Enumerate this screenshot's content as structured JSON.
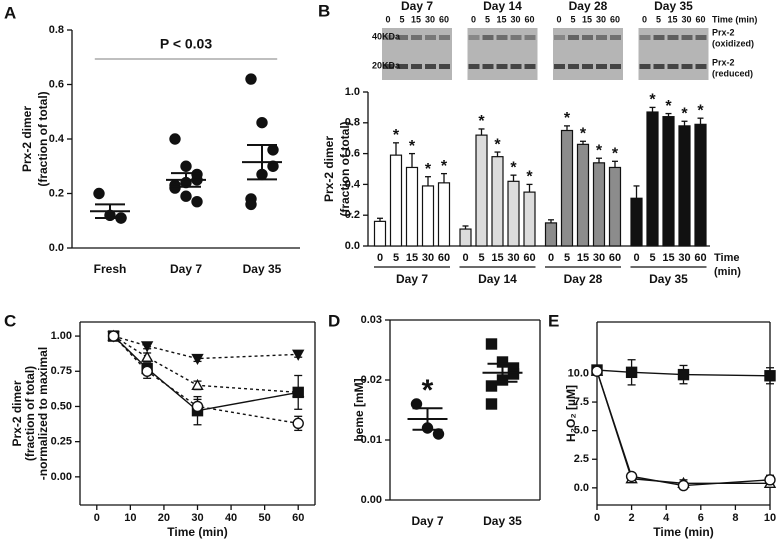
{
  "chart_data": [
    {
      "type": "dot",
      "panel": "A",
      "ylabel": [
        "Prx-2 dimer",
        "(fraction of total)"
      ],
      "annotation": "P < 0.03",
      "categories": [
        "Fresh",
        "Day 7",
        "Day 35"
      ],
      "marker": "circle",
      "points": [
        [
          0.2,
          0.12,
          0.11,
          0.11
        ],
        [
          0.4,
          0.3,
          0.27,
          0.25,
          0.24,
          0.23,
          0.22,
          0.19,
          0.17
        ],
        [
          0.62,
          0.46,
          0.36,
          0.3,
          0.27,
          0.18,
          0.16
        ]
      ],
      "means": [
        0.135,
        0.25,
        0.315
      ],
      "sems": [
        0.025,
        0.025,
        0.063
      ],
      "ylim": [
        0,
        0.8
      ],
      "yticks": [
        {
          "value": 0,
          "label": "0.0"
        },
        0.2,
        0.4,
        0.6,
        0.8
      ]
    },
    {
      "type": "bar",
      "panel": "B",
      "ylabel": [
        "Prx-2 dimer",
        "(fraction of total)"
      ],
      "xlabel": [
        "Time",
        "(min)"
      ],
      "marker": "*",
      "blot": {
        "time_label": "Time (min)",
        "sizes": [
          "40KDa",
          "20KDa"
        ],
        "bands": [
          [
            "Prx-2",
            "(oxidized)"
          ],
          [
            "Prx-2",
            "(reduced)"
          ]
        ]
      },
      "categories": [
        "0",
        "5",
        "15",
        "30",
        "60"
      ],
      "series": [
        {
          "name": "Day 7",
          "color": "#ffffff",
          "values": [
            0.16,
            0.59,
            0.51,
            0.39,
            0.41
          ],
          "errors": [
            0.02,
            0.08,
            0.09,
            0.06,
            0.06
          ],
          "significant": [
            false,
            true,
            true,
            true,
            true
          ]
        },
        {
          "name": "Day 14",
          "color": "#dcdcdc",
          "values": [
            0.11,
            0.72,
            0.58,
            0.42,
            0.35
          ],
          "errors": [
            0.02,
            0.04,
            0.03,
            0.04,
            0.05
          ],
          "significant": [
            false,
            true,
            true,
            true,
            true
          ]
        },
        {
          "name": "Day 28",
          "color": "#8c8c8c",
          "values": [
            0.15,
            0.75,
            0.66,
            0.54,
            0.51
          ],
          "errors": [
            0.02,
            0.03,
            0.02,
            0.03,
            0.04
          ],
          "significant": [
            false,
            true,
            true,
            true,
            true
          ]
        },
        {
          "name": "Day 35",
          "color": "#111111",
          "values": [
            0.31,
            0.87,
            0.84,
            0.78,
            0.79
          ],
          "errors": [
            0.08,
            0.03,
            0.02,
            0.03,
            0.04
          ],
          "significant": [
            false,
            true,
            true,
            true,
            true
          ]
        }
      ],
      "ylim": [
        0,
        1.0
      ],
      "yticks": [
        {
          "value": 0,
          "label": "0.0"
        },
        0.2,
        0.4,
        0.6,
        0.8,
        {
          "value": 1,
          "label": "1.0"
        }
      ]
    },
    {
      "type": "line",
      "panel": "C",
      "ylabel": [
        "Prx-2 dimer",
        "(fraction of total)",
        "-normalized to maximal"
      ],
      "xlabel": "Time (min)",
      "frame": true,
      "x": [
        5,
        15,
        30,
        60
      ],
      "series": [
        {
          "marker": "tri-down",
          "filled": true,
          "dashed": true,
          "values": [
            1.0,
            0.93,
            0.84,
            0.87
          ],
          "errors": [
            0.02,
            0.02,
            0.02,
            0.02
          ]
        },
        {
          "marker": "tri-up",
          "filled": false,
          "dashed": true,
          "values": [
            1.0,
            0.85,
            0.65,
            0.6
          ],
          "errors": [
            0.02,
            0.03,
            0.03,
            0.03
          ]
        },
        {
          "marker": "square",
          "filled": true,
          "dashed": false,
          "values": [
            1.0,
            0.77,
            0.47,
            0.6
          ],
          "errors": [
            0.03,
            0.04,
            0.1,
            0.12
          ]
        },
        {
          "marker": "circle",
          "filled": false,
          "dashed": true,
          "values": [
            1.0,
            0.75,
            0.5,
            0.38
          ],
          "errors": [
            0.03,
            0.05,
            0.05,
            0.05
          ]
        }
      ],
      "xlim": [
        -5,
        65
      ],
      "xticks": [
        0,
        10,
        20,
        30,
        40,
        50,
        60
      ],
      "ylim": [
        -0.2,
        1.1
      ],
      "yticks": [
        {
          "value": 0,
          "label": "0.00"
        },
        0.25,
        {
          "value": 0.5,
          "label": "0.50"
        },
        0.75,
        {
          "value": 1,
          "label": "1.00"
        }
      ]
    },
    {
      "type": "dot",
      "panel": "D",
      "ylabel": [
        "heme [mM]"
      ],
      "annotation": "*",
      "frame": true,
      "categories": [
        "Day 7",
        "Day 35"
      ],
      "markers": [
        "circle",
        "square"
      ],
      "points": [
        [
          0.016,
          0.012,
          0.011
        ],
        [
          0.026,
          0.023,
          0.022,
          0.021,
          0.02,
          0.019,
          0.016
        ]
      ],
      "means": [
        0.0135,
        0.0212
      ],
      "sems": [
        0.0018,
        0.0015
      ],
      "ylim": [
        0,
        0.03
      ],
      "yticks": [
        {
          "value": 0,
          "label": "0.00"
        },
        0.01,
        0.02,
        0.03
      ]
    },
    {
      "type": "line",
      "panel": "E",
      "ylabel": [
        "H₂O₂ [µM]"
      ],
      "xlabel": "Time (min)",
      "frame": true,
      "x": [
        0,
        2,
        5,
        10
      ],
      "series": [
        {
          "marker": "square",
          "filled": true,
          "dashed": false,
          "values": [
            10.3,
            10.1,
            9.9,
            9.8
          ],
          "errors": [
            0.3,
            1.1,
            0.8,
            0.7
          ]
        },
        {
          "marker": "tri-up",
          "filled": false,
          "dashed": false,
          "values": [
            10.2,
            0.8,
            0.4,
            0.4
          ],
          "errors": [
            0.2,
            0.3,
            0.3,
            0.3
          ]
        },
        {
          "marker": "circle",
          "filled": false,
          "dashed": false,
          "values": [
            10.2,
            1.0,
            0.2,
            0.7
          ],
          "errors": [
            0.2,
            0.2,
            0.2,
            0.4
          ]
        }
      ],
      "xlim": [
        0,
        10
      ],
      "xticks": [
        0,
        2,
        4,
        6,
        8,
        10
      ],
      "ylim": [
        -1.5,
        14.5
      ],
      "yticks": [
        {
          "value": 0,
          "label": "0.0"
        },
        2.5,
        {
          "value": 5,
          "label": "5.0"
        },
        7.5,
        {
          "value": 10,
          "label": "10.0"
        }
      ]
    }
  ]
}
